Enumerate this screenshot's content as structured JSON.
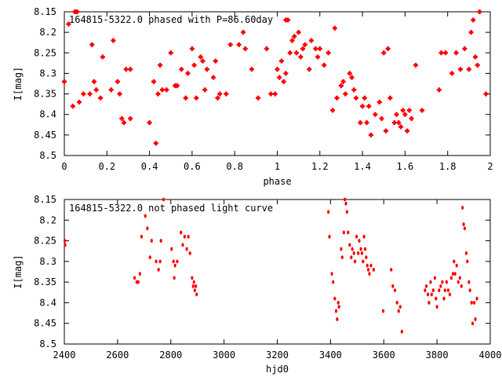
{
  "chart_data": [
    {
      "type": "scatter",
      "title": "164815-5322.0 phased with P=86.60day",
      "xlabel": "phase",
      "ylabel": "I[mag]",
      "xlim": [
        0,
        2
      ],
      "ylim": [
        8.15,
        8.5
      ],
      "y_inverted": true,
      "x_ticks": [
        0,
        0.2,
        0.4,
        0.6,
        0.8,
        1,
        1.2,
        1.4,
        1.6,
        1.8,
        2
      ],
      "y_ticks": [
        8.15,
        8.2,
        8.25,
        8.3,
        8.35,
        8.4,
        8.45,
        8.5
      ],
      "x_tick_labels": [
        "0",
        "0.2",
        "0.4",
        "0.6",
        "0.8",
        "1",
        "1.2",
        "1.4",
        "1.6",
        "1.8",
        "2"
      ],
      "y_tick_labels": [
        "8.15",
        "8.2",
        "8.25",
        "8.3",
        "8.35",
        "8.4",
        "8.45",
        "8.5"
      ],
      "marker": "cross",
      "color": "#ff0000",
      "points": [
        [
          0.0,
          8.32
        ],
        [
          0.02,
          8.18
        ],
        [
          0.04,
          8.38
        ],
        [
          0.05,
          8.15
        ],
        [
          0.06,
          8.15
        ],
        [
          0.07,
          8.37
        ],
        [
          0.09,
          8.35
        ],
        [
          0.12,
          8.35
        ],
        [
          0.13,
          8.23
        ],
        [
          0.14,
          8.32
        ],
        [
          0.15,
          8.34
        ],
        [
          0.17,
          8.36
        ],
        [
          0.18,
          8.26
        ],
        [
          0.22,
          8.34
        ],
        [
          0.23,
          8.22
        ],
        [
          0.25,
          8.32
        ],
        [
          0.26,
          8.35
        ],
        [
          0.27,
          8.41
        ],
        [
          0.28,
          8.42
        ],
        [
          0.29,
          8.29
        ],
        [
          0.31,
          8.41
        ],
        [
          0.31,
          8.29
        ],
        [
          0.4,
          8.42
        ],
        [
          0.42,
          8.32
        ],
        [
          0.43,
          8.47
        ],
        [
          0.44,
          8.35
        ],
        [
          0.45,
          8.28
        ],
        [
          0.46,
          8.34
        ],
        [
          0.48,
          8.34
        ],
        [
          0.5,
          8.25
        ],
        [
          0.52,
          8.33
        ],
        [
          0.53,
          8.33
        ],
        [
          0.55,
          8.29
        ],
        [
          0.57,
          8.36
        ],
        [
          0.58,
          8.3
        ],
        [
          0.6,
          8.24
        ],
        [
          0.61,
          8.28
        ],
        [
          0.62,
          8.36
        ],
        [
          0.64,
          8.26
        ],
        [
          0.65,
          8.27
        ],
        [
          0.66,
          8.34
        ],
        [
          0.67,
          8.29
        ],
        [
          0.7,
          8.31
        ],
        [
          0.71,
          8.27
        ],
        [
          0.72,
          8.36
        ],
        [
          0.73,
          8.35
        ],
        [
          0.76,
          8.35
        ],
        [
          0.78,
          8.23
        ],
        [
          0.82,
          8.23
        ],
        [
          0.84,
          8.2
        ],
        [
          0.85,
          8.24
        ],
        [
          0.88,
          8.29
        ],
        [
          0.91,
          8.36
        ],
        [
          0.95,
          8.24
        ],
        [
          0.97,
          8.35
        ],
        [
          0.99,
          8.35
        ],
        [
          1.0,
          8.29
        ],
        [
          1.01,
          8.31
        ],
        [
          1.02,
          8.27
        ],
        [
          1.03,
          8.32
        ],
        [
          1.04,
          8.3
        ],
        [
          1.04,
          8.17
        ],
        [
          1.05,
          8.17
        ],
        [
          1.06,
          8.25
        ],
        [
          1.07,
          8.22
        ],
        [
          1.08,
          8.21
        ],
        [
          1.09,
          8.25
        ],
        [
          1.1,
          8.2
        ],
        [
          1.11,
          8.26
        ],
        [
          1.12,
          8.24
        ],
        [
          1.13,
          8.23
        ],
        [
          1.15,
          8.29
        ],
        [
          1.16,
          8.22
        ],
        [
          1.18,
          8.24
        ],
        [
          1.19,
          8.26
        ],
        [
          1.2,
          8.24
        ],
        [
          1.22,
          8.28
        ],
        [
          1.24,
          8.25
        ],
        [
          1.26,
          8.39
        ],
        [
          1.27,
          8.19
        ],
        [
          1.28,
          8.36
        ],
        [
          1.3,
          8.33
        ],
        [
          1.31,
          8.32
        ],
        [
          1.32,
          8.35
        ],
        [
          1.34,
          8.3
        ],
        [
          1.35,
          8.31
        ],
        [
          1.36,
          8.34
        ],
        [
          1.37,
          8.36
        ],
        [
          1.39,
          8.42
        ],
        [
          1.4,
          8.38
        ],
        [
          1.41,
          8.36
        ],
        [
          1.42,
          8.42
        ],
        [
          1.43,
          8.38
        ],
        [
          1.44,
          8.45
        ],
        [
          1.46,
          8.4
        ],
        [
          1.48,
          8.37
        ],
        [
          1.49,
          8.41
        ],
        [
          1.5,
          8.25
        ],
        [
          1.51,
          8.44
        ],
        [
          1.52,
          8.24
        ],
        [
          1.53,
          8.36
        ],
        [
          1.55,
          8.42
        ],
        [
          1.56,
          8.4
        ],
        [
          1.57,
          8.42
        ],
        [
          1.58,
          8.43
        ],
        [
          1.59,
          8.39
        ],
        [
          1.6,
          8.4
        ],
        [
          1.61,
          8.44
        ],
        [
          1.62,
          8.39
        ],
        [
          1.63,
          8.41
        ],
        [
          1.65,
          8.28
        ],
        [
          1.68,
          8.39
        ],
        [
          1.76,
          8.34
        ],
        [
          1.77,
          8.25
        ],
        [
          1.79,
          8.25
        ],
        [
          1.82,
          8.3
        ],
        [
          1.84,
          8.25
        ],
        [
          1.86,
          8.29
        ],
        [
          1.88,
          8.24
        ],
        [
          1.9,
          8.29
        ],
        [
          1.91,
          8.2
        ],
        [
          1.92,
          8.17
        ],
        [
          1.93,
          8.26
        ],
        [
          1.94,
          8.28
        ],
        [
          1.95,
          8.15
        ],
        [
          1.98,
          8.35
        ]
      ]
    },
    {
      "type": "scatter",
      "title": "164815-5322.0 not phased light curve",
      "xlabel": "hjd0",
      "ylabel": "I[mag]",
      "xlim": [
        2400,
        4000
      ],
      "ylim": [
        8.15,
        8.5
      ],
      "y_inverted": true,
      "x_ticks": [
        2400,
        2600,
        2800,
        3000,
        3200,
        3400,
        3600,
        3800,
        4000
      ],
      "y_ticks": [
        8.15,
        8.2,
        8.25,
        8.3,
        8.35,
        8.4,
        8.45,
        8.5
      ],
      "x_tick_labels": [
        "2400",
        "2600",
        "2800",
        "3000",
        "3200",
        "3400",
        "3600",
        "3800",
        "4000"
      ],
      "y_tick_labels": [
        "8.15",
        "8.2",
        "8.25",
        "8.3",
        "8.35",
        "8.4",
        "8.45",
        "8.5"
      ],
      "marker": "dot",
      "color": "#ff0000",
      "points": [
        [
          2402,
          8.25
        ],
        [
          2403,
          8.26
        ],
        [
          2664,
          8.34
        ],
        [
          2672,
          8.35
        ],
        [
          2678,
          8.35
        ],
        [
          2684,
          8.33
        ],
        [
          2690,
          8.24
        ],
        [
          2704,
          8.19
        ],
        [
          2712,
          8.22
        ],
        [
          2722,
          8.29
        ],
        [
          2728,
          8.25
        ],
        [
          2745,
          8.3
        ],
        [
          2754,
          8.32
        ],
        [
          2760,
          8.3
        ],
        [
          2763,
          8.25
        ],
        [
          2773,
          8.15
        ],
        [
          2803,
          8.27
        ],
        [
          2810,
          8.3
        ],
        [
          2813,
          8.34
        ],
        [
          2816,
          8.31
        ],
        [
          2824,
          8.3
        ],
        [
          2838,
          8.23
        ],
        [
          2845,
          8.26
        ],
        [
          2852,
          8.24
        ],
        [
          2860,
          8.27
        ],
        [
          2866,
          8.24
        ],
        [
          2872,
          8.28
        ],
        [
          2880,
          8.34
        ],
        [
          2884,
          8.36
        ],
        [
          2887,
          8.35
        ],
        [
          2890,
          8.37
        ],
        [
          2894,
          8.36
        ],
        [
          2897,
          8.38
        ],
        [
          3392,
          8.18
        ],
        [
          3396,
          8.24
        ],
        [
          3405,
          8.33
        ],
        [
          3410,
          8.35
        ],
        [
          3416,
          8.39
        ],
        [
          3421,
          8.42
        ],
        [
          3425,
          8.44
        ],
        [
          3429,
          8.4
        ],
        [
          3432,
          8.41
        ],
        [
          3440,
          8.27
        ],
        [
          3444,
          8.29
        ],
        [
          3450,
          8.23
        ],
        [
          3454,
          8.15
        ],
        [
          3458,
          8.16
        ],
        [
          3462,
          8.18
        ],
        [
          3466,
          8.23
        ],
        [
          3472,
          8.26
        ],
        [
          3478,
          8.29
        ],
        [
          3482,
          8.27
        ],
        [
          3488,
          8.28
        ],
        [
          3492,
          8.3
        ],
        [
          3498,
          8.24
        ],
        [
          3504,
          8.28
        ],
        [
          3508,
          8.25
        ],
        [
          3514,
          8.27
        ],
        [
          3518,
          8.28
        ],
        [
          3522,
          8.3
        ],
        [
          3526,
          8.24
        ],
        [
          3530,
          8.27
        ],
        [
          3534,
          8.29
        ],
        [
          3538,
          8.31
        ],
        [
          3542,
          8.32
        ],
        [
          3546,
          8.33
        ],
        [
          3552,
          8.31
        ],
        [
          3562,
          8.32
        ],
        [
          3598,
          8.42
        ],
        [
          3628,
          8.32
        ],
        [
          3634,
          8.36
        ],
        [
          3642,
          8.37
        ],
        [
          3650,
          8.4
        ],
        [
          3656,
          8.42
        ],
        [
          3662,
          8.41
        ],
        [
          3668,
          8.47
        ],
        [
          3755,
          8.37
        ],
        [
          3760,
          8.36
        ],
        [
          3766,
          8.38
        ],
        [
          3770,
          8.4
        ],
        [
          3776,
          8.35
        ],
        [
          3780,
          8.38
        ],
        [
          3786,
          8.37
        ],
        [
          3792,
          8.34
        ],
        [
          3796,
          8.39
        ],
        [
          3800,
          8.41
        ],
        [
          3808,
          8.37
        ],
        [
          3814,
          8.36
        ],
        [
          3820,
          8.35
        ],
        [
          3826,
          8.39
        ],
        [
          3830,
          8.37
        ],
        [
          3836,
          8.35
        ],
        [
          3842,
          8.37
        ],
        [
          3848,
          8.38
        ],
        [
          3854,
          8.34
        ],
        [
          3860,
          8.33
        ],
        [
          3864,
          8.3
        ],
        [
          3868,
          8.33
        ],
        [
          3874,
          8.31
        ],
        [
          3880,
          8.35
        ],
        [
          3886,
          8.34
        ],
        [
          3892,
          8.36
        ],
        [
          3896,
          8.17
        ],
        [
          3900,
          8.21
        ],
        [
          3904,
          8.22
        ],
        [
          3910,
          8.28
        ],
        [
          3914,
          8.3
        ],
        [
          3920,
          8.35
        ],
        [
          3924,
          8.37
        ],
        [
          3930,
          8.4
        ],
        [
          3934,
          8.45
        ],
        [
          3940,
          8.4
        ],
        [
          3944,
          8.44
        ],
        [
          3950,
          8.39
        ]
      ]
    }
  ]
}
